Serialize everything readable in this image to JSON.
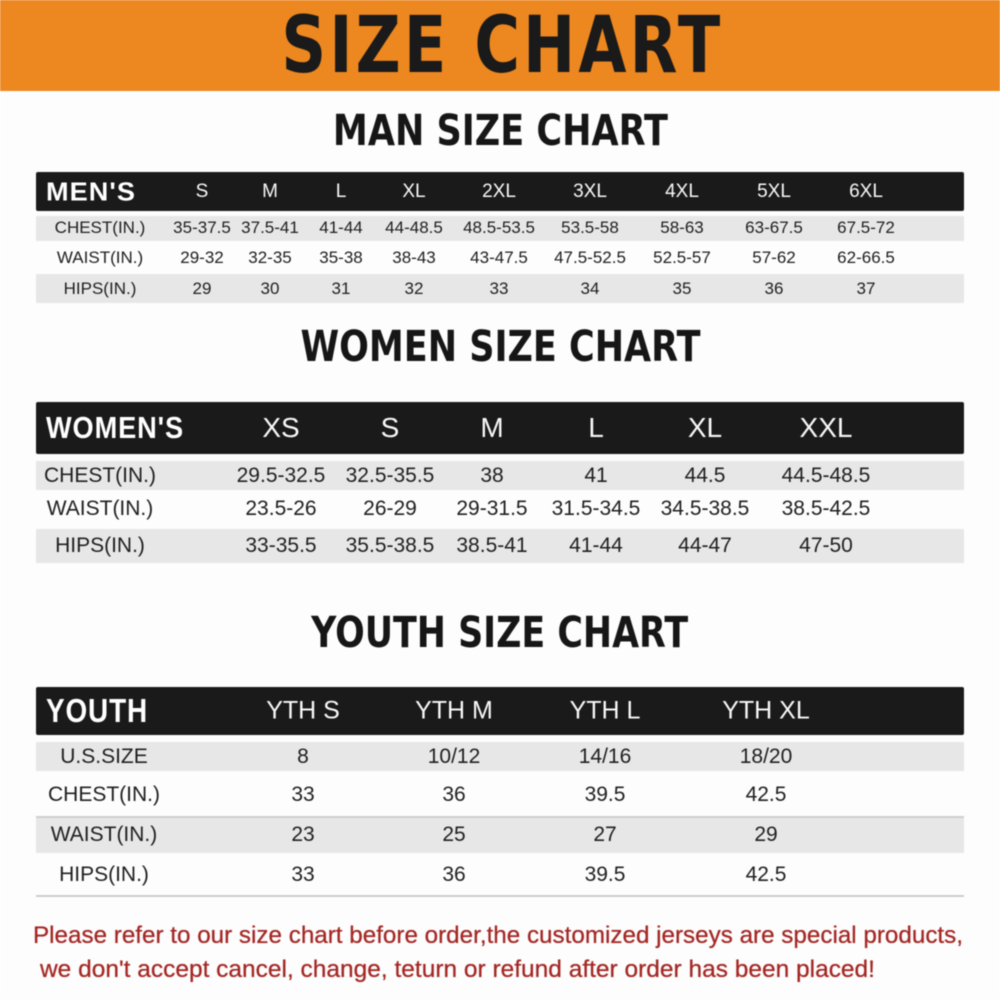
{
  "banner": {
    "title": "SIZE CHART",
    "bg_color": "#ED871F",
    "text_color": "#1a1a1a"
  },
  "chart_data": [
    {
      "type": "table",
      "title": "MAN SIZE CHART",
      "header": [
        "MEN'S",
        "S",
        "M",
        "L",
        "XL",
        "2XL",
        "3XL",
        "4XL",
        "5XL",
        "6XL"
      ],
      "rows": [
        [
          "CHEST(IN.)",
          "35-37.5",
          "37.5-41",
          "41-44",
          "44-48.5",
          "48.5-53.5",
          "53.5-58",
          "58-63",
          "63-67.5",
          "67.5-72"
        ],
        [
          "WAIST(IN.)",
          "29-32",
          "32-35",
          "35-38",
          "38-43",
          "43-47.5",
          "47.5-52.5",
          "52.5-57",
          "57-62",
          "62-66.5"
        ],
        [
          "HIPS(IN.)",
          "29",
          "30",
          "31",
          "32",
          "33",
          "34",
          "35",
          "36",
          "37"
        ]
      ]
    },
    {
      "type": "table",
      "title": "WOMEN SIZE CHART",
      "header": [
        "WOMEN'S",
        "XS",
        "S",
        "M",
        "L",
        "XL",
        "XXL"
      ],
      "rows": [
        [
          "CHEST(IN.)",
          "29.5-32.5",
          "32.5-35.5",
          "38",
          "41",
          "44.5",
          "44.5-48.5"
        ],
        [
          "WAIST(IN.)",
          "23.5-26",
          "26-29",
          "29-31.5",
          "31.5-34.5",
          "34.5-38.5",
          "38.5-42.5"
        ],
        [
          "HIPS(IN.)",
          "33-35.5",
          "35.5-38.5",
          "38.5-41",
          "41-44",
          "44-47",
          "47-50"
        ]
      ]
    },
    {
      "type": "table",
      "title": "YOUTH SIZE CHART",
      "header": [
        "YOUTH",
        "YTH S",
        "YTH M",
        "YTH L",
        "YTH XL"
      ],
      "rows": [
        [
          "U.S.SIZE",
          "8",
          "10/12",
          "14/16",
          "18/20"
        ],
        [
          "CHEST(IN.)",
          "33",
          "36",
          "39.5",
          "42.5"
        ],
        [
          "WAIST(IN.)",
          "23",
          "25",
          "27",
          "29"
        ],
        [
          "HIPS(IN.)",
          "33",
          "36",
          "39.5",
          "42.5"
        ]
      ]
    }
  ],
  "footnote": {
    "lines": [
      "Please refer to our size chart before order,the customized jerseys are special products,",
      "we don't accept cancel, change, teturn or refund after order has been placed!"
    ],
    "color": "#a32724"
  }
}
